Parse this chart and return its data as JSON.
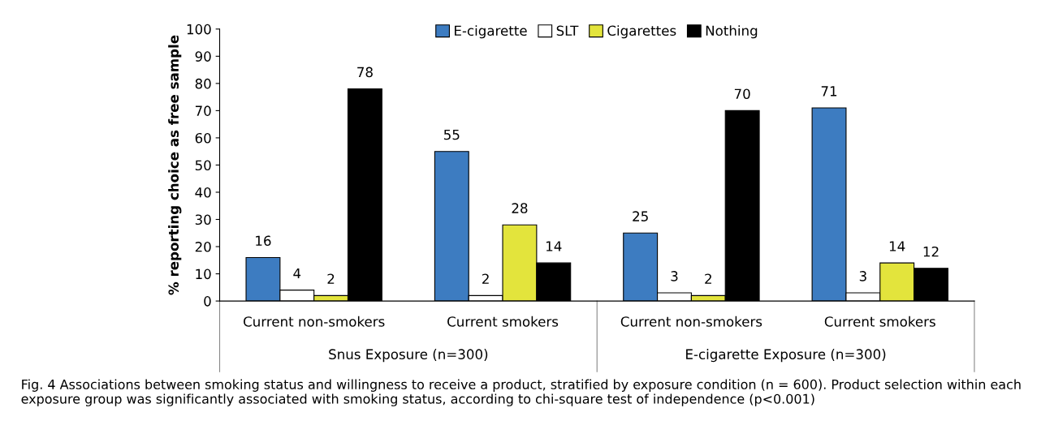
{
  "chart_data": {
    "type": "bar",
    "ylabel": "% reporting choice as free sample",
    "categories": [
      "Current non-smokers",
      "Current smokers",
      "Current non-smokers",
      "Current smokers"
    ],
    "series": [
      {
        "name": "E-cigarette",
        "color": "#3d7cc1",
        "values": [
          16,
          55,
          25,
          71
        ]
      },
      {
        "name": "SLT",
        "color": "#ffffff",
        "values": [
          4,
          2,
          3,
          3
        ]
      },
      {
        "name": "Cigarettes",
        "color": "#e3e43c",
        "values": [
          2,
          28,
          2,
          14
        ]
      },
      {
        "name": "Nothing",
        "color": "#000000",
        "values": [
          78,
          14,
          70,
          12
        ]
      }
    ],
    "ylim": [
      0,
      100
    ],
    "yticks": [
      0,
      10,
      20,
      30,
      40,
      50,
      60,
      70,
      80,
      90,
      100
    ],
    "data_labels": true,
    "grid": false,
    "legend": "top",
    "annotations": [
      "Snus Exposure (n=300)",
      "E-cigarette Exposure (n=300)",
      "Fig. 4 Associations between smoking status and willingness to receive a product, stratified by exposure condition (n = 600). Product selection within each exposure group was significantly associated with smoking status, according to chi-square test of independence (p<0.001)"
    ]
  }
}
